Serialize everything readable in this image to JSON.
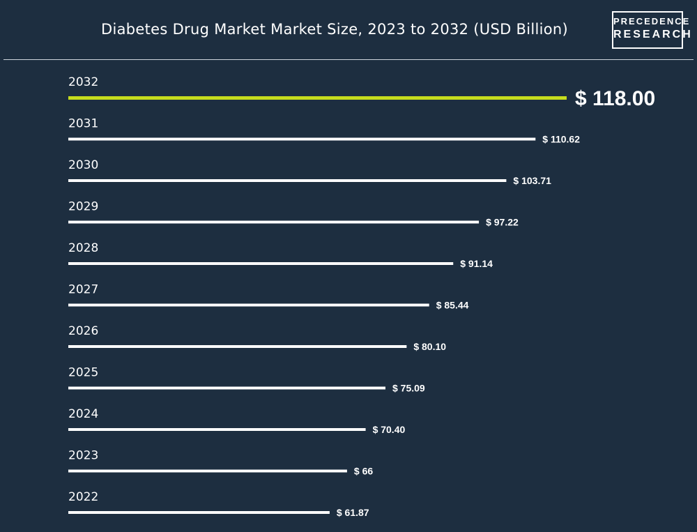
{
  "title": "Diabetes Drug Market Market Size, 2023 to 2032 (USD Billion)",
  "logo": {
    "line1": "PRECEDENCE",
    "line2": "RESEARCH"
  },
  "colors": {
    "background": "#1d2e40",
    "bar": "#ffffff",
    "highlight_bar": "#c6dc1d",
    "text": "#ffffff"
  },
  "chart_data": {
    "type": "bar",
    "orientation": "horizontal",
    "value_prefix": "$ ",
    "categories": [
      "2032",
      "2031",
      "2030",
      "2029",
      "2028",
      "2027",
      "2026",
      "2025",
      "2024",
      "2023",
      "2022"
    ],
    "values": [
      118.0,
      110.62,
      103.71,
      97.22,
      91.14,
      85.44,
      80.1,
      75.09,
      70.4,
      66,
      61.87
    ],
    "value_labels": [
      "118.00",
      "110.62",
      "103.71",
      "97.22",
      "91.14",
      "85.44",
      "80.10",
      "75.09",
      "70.40",
      "66",
      "61.87"
    ],
    "highlight_category": "2032",
    "xlim": [
      0,
      118
    ],
    "grid": false,
    "legend": "none"
  }
}
